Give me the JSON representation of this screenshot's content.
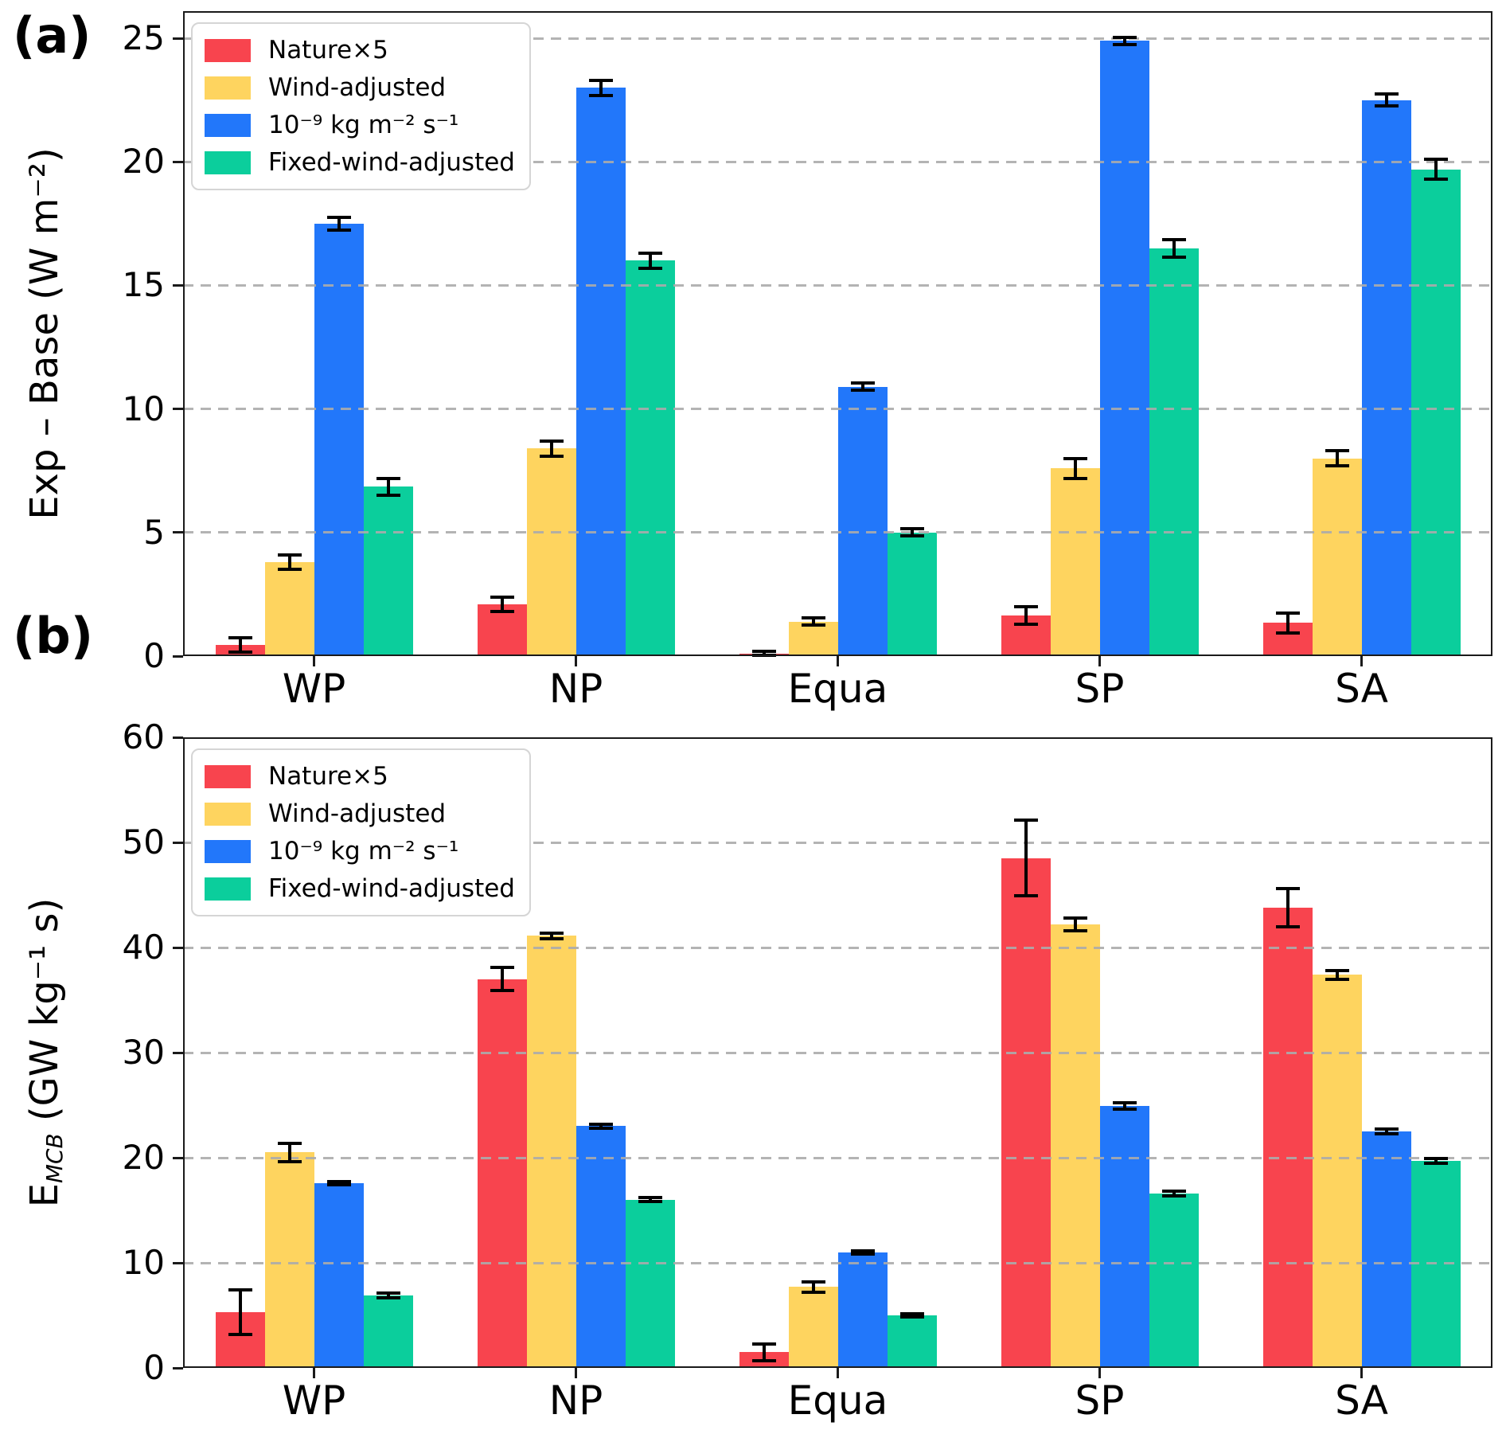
{
  "figure": {
    "background_color": "#ffffff",
    "grid_color": "#ababab",
    "spine_color": "#1a1a1a",
    "error_bar_color": "#000000"
  },
  "chart_data": [
    {
      "type": "bar",
      "panel_label": "(a)",
      "title": "",
      "xlabel": "",
      "ylabel": "Exp – Base (W m⁻²)",
      "ylabel_parts": {
        "pre": "Exp – Base (W m⁻²)",
        "sub": "",
        "post": ""
      },
      "categories": [
        "WP",
        "NP",
        "Equa",
        "SP",
        "SA"
      ],
      "series": [
        {
          "name": "Nature×5",
          "color": "#F8444E",
          "values": [
            0.45,
            2.1,
            0.1,
            1.65,
            1.35
          ],
          "errors": [
            0.3,
            0.3,
            0.08,
            0.35,
            0.4
          ]
        },
        {
          "name": "Wind-adjusted",
          "color": "#FED45F",
          "values": [
            3.8,
            8.4,
            1.4,
            7.6,
            8.0
          ],
          "errors": [
            0.3,
            0.3,
            0.15,
            0.4,
            0.3
          ]
        },
        {
          "name": "10⁻⁹ kg m⁻² s⁻¹",
          "color": "#2277FA",
          "values": [
            17.5,
            23.0,
            10.9,
            24.9,
            22.5
          ],
          "errors": [
            0.25,
            0.3,
            0.15,
            0.15,
            0.25
          ]
        },
        {
          "name": "Fixed-wind-adjusted",
          "color": "#0BCE9C",
          "values": [
            6.85,
            16.0,
            5.0,
            16.5,
            19.7
          ],
          "errors": [
            0.35,
            0.3,
            0.15,
            0.35,
            0.4
          ]
        }
      ],
      "ylim": [
        0,
        26.1
      ],
      "yticks": [
        0,
        5,
        10,
        15,
        20,
        25
      ],
      "grid": "dashed horizontal, drawn over bars",
      "legend_position": "upper left"
    },
    {
      "type": "bar",
      "panel_label": "(b)",
      "title": "",
      "xlabel": "",
      "ylabel": "E_MCB (GW kg⁻¹ s)",
      "ylabel_parts": {
        "pre": "E",
        "sub": "MCB",
        "post": " (GW kg⁻¹ s)"
      },
      "categories": [
        "WP",
        "NP",
        "Equa",
        "SP",
        "SA"
      ],
      "series": [
        {
          "name": "Nature×5",
          "color": "#F8444E",
          "values": [
            5.3,
            37.0,
            1.5,
            48.5,
            43.8
          ],
          "errors": [
            2.1,
            1.1,
            0.8,
            3.6,
            1.8
          ]
        },
        {
          "name": "Wind-adjusted",
          "color": "#FED45F",
          "values": [
            20.5,
            41.1,
            7.7,
            42.2,
            37.4
          ],
          "errors": [
            0.9,
            0.3,
            0.5,
            0.6,
            0.4
          ]
        },
        {
          "name": "10⁻⁹ kg m⁻² s⁻¹",
          "color": "#2277FA",
          "values": [
            17.6,
            23.0,
            11.0,
            24.9,
            22.5
          ],
          "errors": [
            0.15,
            0.2,
            0.15,
            0.3,
            0.2
          ]
        },
        {
          "name": "Fixed-wind-adjusted",
          "color": "#0BCE9C",
          "values": [
            6.9,
            16.0,
            5.0,
            16.6,
            19.7
          ],
          "errors": [
            0.2,
            0.2,
            0.15,
            0.2,
            0.2
          ]
        }
      ],
      "ylim": [
        0,
        60
      ],
      "yticks": [
        0,
        10,
        20,
        30,
        40,
        50,
        60
      ],
      "grid": "dashed horizontal, drawn over bars",
      "legend_position": "upper left"
    }
  ]
}
